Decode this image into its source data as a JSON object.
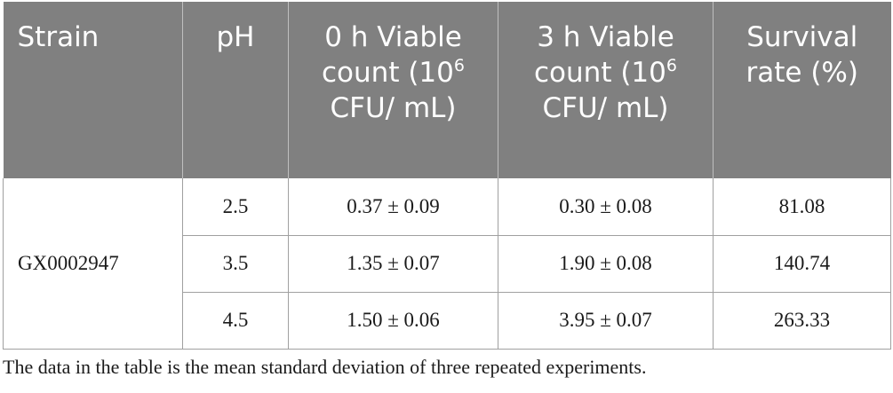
{
  "table": {
    "headers": [
      {
        "pre": "Strain",
        "sup": "",
        "post": ""
      },
      {
        "pre": "pH",
        "sup": "",
        "post": ""
      },
      {
        "pre": "0 h Viable count (10",
        "sup": "6",
        "post": " CFU/ mL)"
      },
      {
        "pre": "3 h Viable count (10",
        "sup": "6",
        "post": " CFU/ mL)"
      },
      {
        "pre": "Survival rate (%)",
        "sup": "",
        "post": ""
      }
    ],
    "strain": "GX0002947",
    "rows": [
      {
        "ph": "2.5",
        "count_0h": "0.37 ± 0.09",
        "count_3h": "0.30 ± 0.08",
        "survival": "81.08"
      },
      {
        "ph": "3.5",
        "count_0h": "1.35 ± 0.07",
        "count_3h": "1.90 ± 0.08",
        "survival": "140.74"
      },
      {
        "ph": "4.5",
        "count_0h": "1.50 ± 0.06",
        "count_3h": "3.95 ± 0.07",
        "survival": "263.33"
      }
    ]
  },
  "footnote": "The data in the table is the mean standard deviation of three repeated experiments.",
  "colors": {
    "header_bg": "#808080",
    "header_text": "#ffffff",
    "border": "#a0a0a0"
  }
}
